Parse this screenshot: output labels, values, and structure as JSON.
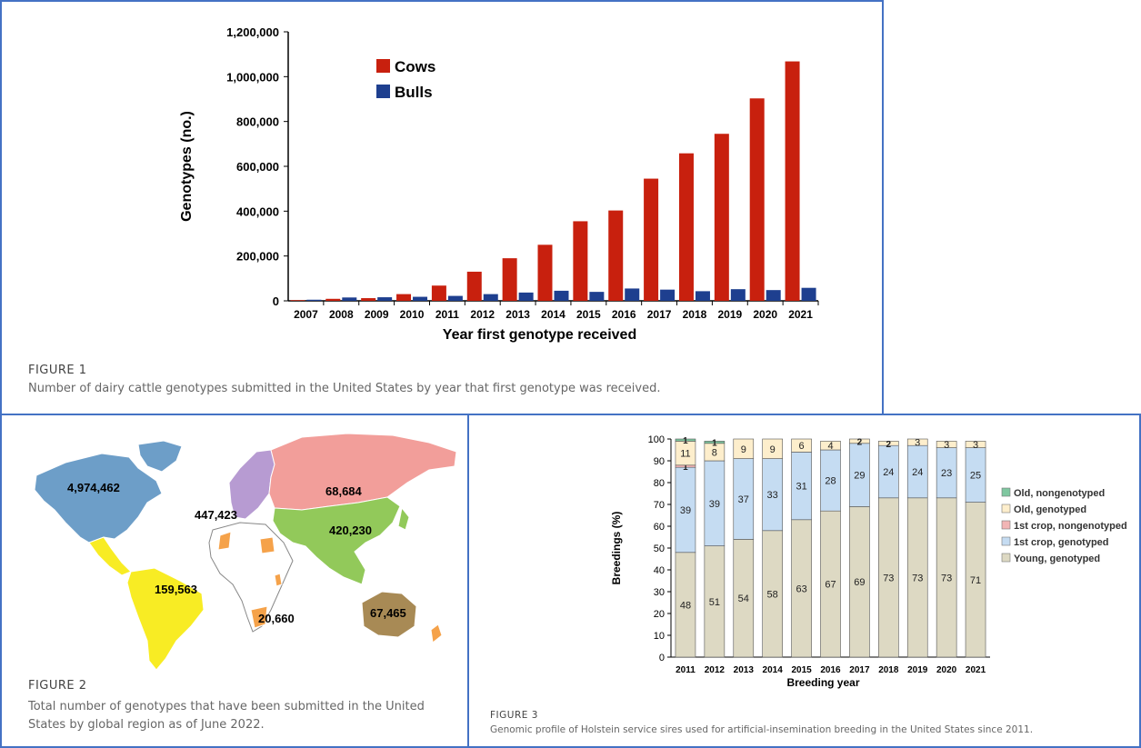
{
  "figure1": {
    "label": "FIGURE 1",
    "caption": "Number of dairy cattle genotypes submitted in the United States by year that first genotype was received."
  },
  "figure2": {
    "label": "FIGURE 2",
    "caption": "Total number of genotypes that have been submitted in the United States by global region as of June 2022.",
    "regions": [
      {
        "name": "north-america",
        "value": "4,974,462",
        "color": "#6d9ec8"
      },
      {
        "name": "europe",
        "value": "447,423",
        "color": "#b79bd2"
      },
      {
        "name": "russia",
        "value": "68,684",
        "color": "#f29e9a"
      },
      {
        "name": "asia",
        "value": "420,230",
        "color": "#92c95a"
      },
      {
        "name": "latin-america",
        "value": "159,563",
        "color": "#f8ec24"
      },
      {
        "name": "africa",
        "value": "20,660",
        "color": "#f5a24a"
      },
      {
        "name": "oceania",
        "value": "67,465",
        "color": "#a88a55"
      }
    ]
  },
  "figure3": {
    "label": "FIGURE 3",
    "caption": "Genomic profile of Holstein service sires used for artificial-insemination breeding in the United States since 2011."
  },
  "chart_data": [
    {
      "type": "bar",
      "id": "figure1-chart",
      "categories": [
        "2007",
        "2008",
        "2009",
        "2010",
        "2011",
        "2012",
        "2013",
        "2014",
        "2015",
        "2016",
        "2017",
        "2018",
        "2019",
        "2020",
        "2021"
      ],
      "series": [
        {
          "name": "Cows",
          "color": "#c8200e",
          "values": [
            3000,
            9000,
            12000,
            30000,
            68000,
            130000,
            190000,
            250000,
            355000,
            403000,
            545000,
            658000,
            745000,
            903000,
            1068000
          ]
        },
        {
          "name": "Bulls",
          "color": "#1e3f8f",
          "values": [
            5000,
            15000,
            16000,
            18000,
            22000,
            30000,
            37000,
            45000,
            40000,
            55000,
            50000,
            43000,
            52000,
            48000,
            58000
          ]
        }
      ],
      "xlabel": "Year first genotype received",
      "ylabel": "Genotypes (no.)",
      "ylim": [
        0,
        1200000
      ],
      "yticks": [
        {
          "value": 0,
          "label": "0"
        },
        {
          "value": 200000,
          "label": "200,000"
        },
        {
          "value": 400000,
          "label": "400,000"
        },
        {
          "value": 600000,
          "label": "600,000"
        },
        {
          "value": 800000,
          "label": "800,000"
        },
        {
          "value": 1000000,
          "label": "1,000,000"
        },
        {
          "value": 1200000,
          "label": "1,200,000"
        }
      ],
      "legend": "top-left",
      "grid": false
    },
    {
      "type": "bar",
      "stacked": true,
      "id": "figure3-chart",
      "categories": [
        "2011",
        "2012",
        "2013",
        "2014",
        "2015",
        "2016",
        "2017",
        "2018",
        "2019",
        "2020",
        "2021"
      ],
      "series": [
        {
          "name": "Young, genotyped",
          "color": "#ddd9c3",
          "values": [
            48,
            51,
            54,
            58,
            63,
            67,
            69,
            73,
            73,
            73,
            71
          ],
          "labels": [
            "48",
            "51",
            "54",
            "58",
            "63",
            "67",
            "69",
            "73",
            "73",
            "73",
            "71"
          ]
        },
        {
          "name": "1st crop, genotyped",
          "color": "#c5dcf2",
          "values": [
            39,
            39,
            37,
            33,
            31,
            28,
            29,
            24,
            24,
            23,
            25
          ],
          "labels": [
            "39",
            "39",
            "37",
            "33",
            "31",
            "28",
            "29",
            "24",
            "24",
            "23",
            "25"
          ]
        },
        {
          "name": "1st crop, nongenotyped",
          "color": "#f2b5b5",
          "values": [
            1,
            0,
            0,
            0,
            0,
            0,
            0,
            0,
            0,
            0,
            0
          ],
          "labels": [
            "1",
            "",
            "",
            "",
            "",
            "",
            "",
            "",
            "",
            "",
            ""
          ]
        },
        {
          "name": "Old, genotyped",
          "color": "#fdeecc",
          "values": [
            11,
            8,
            9,
            9,
            6,
            4,
            2,
            2,
            3,
            3,
            3
          ],
          "labels": [
            "11",
            "8",
            "9",
            "9",
            "6",
            "4",
            "2",
            "2",
            "3",
            "3",
            "3"
          ]
        },
        {
          "name": "Old, nongenotyped",
          "color": "#7fc7a0",
          "values": [
            1,
            1,
            0,
            0,
            0,
            0,
            0,
            0,
            0,
            0,
            0
          ],
          "labels": [
            "1",
            "1",
            "",
            "",
            "",
            "",
            "",
            "",
            "",
            "",
            ""
          ]
        }
      ],
      "xlabel": "Breeding year",
      "ylabel": "Breedings (%)",
      "ylim": [
        0,
        100
      ],
      "yticks": [
        0,
        10,
        20,
        30,
        40,
        50,
        60,
        70,
        80,
        90,
        100
      ],
      "legend": "right",
      "grid": false
    }
  ]
}
